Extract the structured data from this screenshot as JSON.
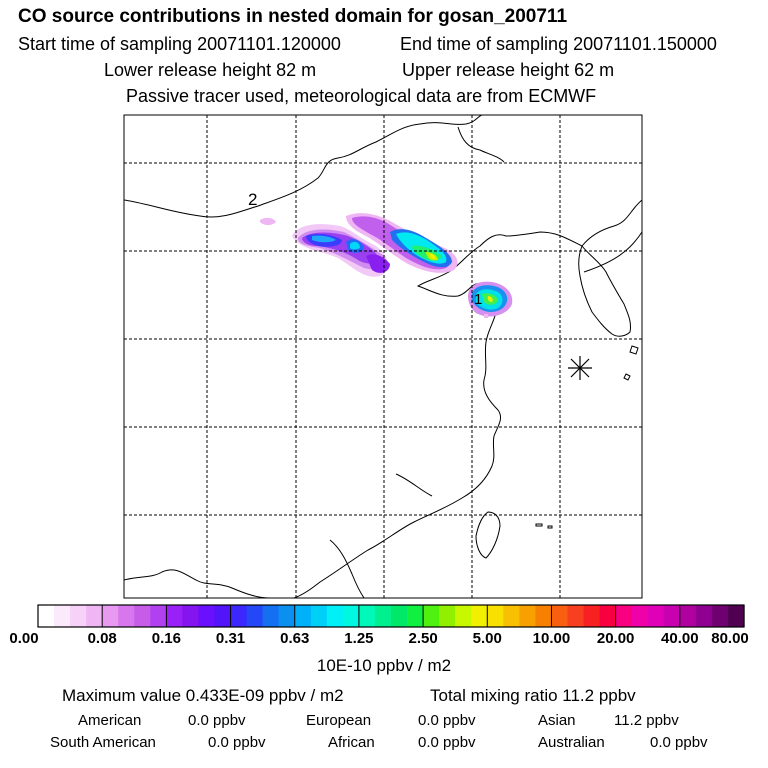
{
  "header": {
    "title": "CO  source contributions in nested domain for gosan_200711",
    "start_time": "Start time of sampling 20071101.120000",
    "end_time": "End time of sampling 20071101.150000",
    "lower_release": "Lower release height   82 m",
    "upper_release": "Upper release height   62 m",
    "tracer_note": "Passive tracer used, meteorological data are from ECMWF"
  },
  "map": {
    "labels": [
      "2",
      "1"
    ]
  },
  "colorbar": {
    "ticks": [
      "0.00",
      "0.08",
      "0.16",
      "0.31",
      "0.63",
      "1.25",
      "2.50",
      "5.00",
      "10.00",
      "20.00",
      "40.00",
      "80.00"
    ],
    "unit": "10E-10 ppbv / m2",
    "colors": [
      "#ffffff",
      "#fbeafc",
      "#f6d2f8",
      "#efb6f4",
      "#e89af0",
      "#d876ee",
      "#c65ce8",
      "#b040f0",
      "#9a20f8",
      "#8414f0",
      "#6a10ff",
      "#5214f8",
      "#3c28ff",
      "#2448f8",
      "#1470f0",
      "#0c90f0",
      "#00b0f8",
      "#00d0f8",
      "#00f0f8",
      "#00f8e0",
      "#00f8b8",
      "#00f090",
      "#00e868",
      "#10f040",
      "#50f010",
      "#90f000",
      "#c8f800",
      "#f0f000",
      "#f8e000",
      "#f8c000",
      "#f8a000",
      "#f88000",
      "#f86010",
      "#f84020",
      "#f82020",
      "#f80040",
      "#f80080",
      "#f000a8",
      "#e000b8",
      "#c800b0",
      "#b000a0",
      "#900090",
      "#700070",
      "#500050"
    ]
  },
  "summary": {
    "max_label": "Maximum value  0.433E-09 ppbv / m2",
    "total_label": "Total mixing ratio        11.2 ppbv",
    "rows": [
      [
        {
          "name": "American",
          "value": "0.0 ppbv"
        },
        {
          "name": "European",
          "value": "0.0 ppbv"
        },
        {
          "name": "Asian",
          "value": "11.2 ppbv"
        }
      ],
      [
        {
          "name": "South American",
          "value": "0.0 ppbv"
        },
        {
          "name": "African",
          "value": "0.0 ppbv"
        },
        {
          "name": "Australian",
          "value": "0.0 ppbv"
        }
      ]
    ]
  }
}
